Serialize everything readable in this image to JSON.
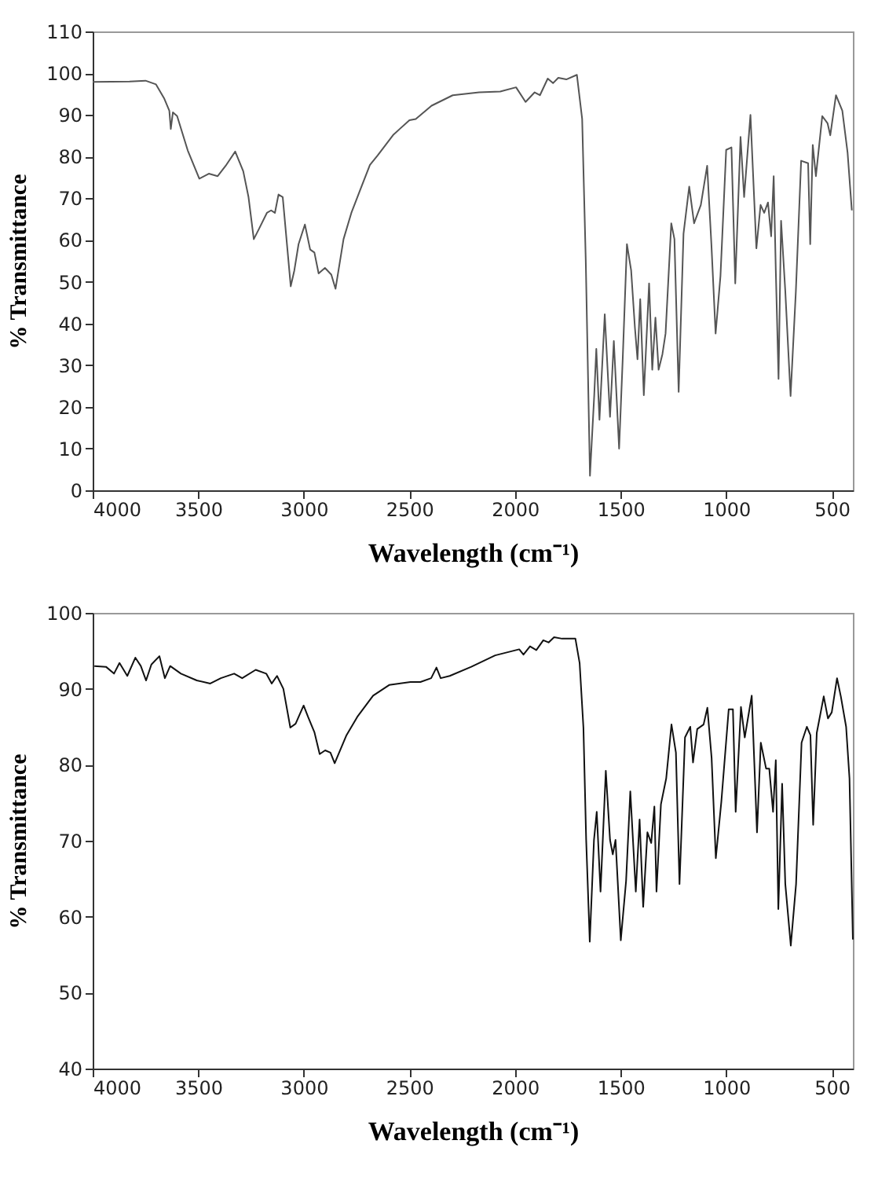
{
  "chart_data": [
    {
      "type": "line",
      "xlabel": "Wavelength (cm⁻¹)",
      "ylabel": "% Transmittance",
      "color": "#555555",
      "grid": false,
      "xlim": [
        4000,
        400
      ],
      "ylim": [
        0,
        110
      ],
      "xticks": [
        4000,
        3500,
        3000,
        2500,
        2000,
        1500,
        1000,
        500
      ],
      "yticks": [
        0,
        10,
        20,
        30,
        40,
        50,
        60,
        70,
        80,
        90,
        100,
        110
      ],
      "x": [
        4000,
        3825,
        3750,
        3700,
        3662,
        3637,
        3630,
        3620,
        3600,
        3550,
        3495,
        3450,
        3408,
        3370,
        3325,
        3287,
        3262,
        3237,
        3212,
        3175,
        3155,
        3137,
        3120,
        3100,
        3062,
        3045,
        3025,
        2995,
        2970,
        2950,
        2930,
        2900,
        2870,
        2850,
        2812,
        2775,
        2737,
        2687,
        2650,
        2575,
        2500,
        2470,
        2395,
        2295,
        2170,
        2070,
        1995,
        1950,
        1907,
        1882,
        1845,
        1820,
        1795,
        1757,
        1707,
        1682,
        1665,
        1645,
        1625,
        1615,
        1600,
        1575,
        1550,
        1532,
        1507,
        1490,
        1470,
        1450,
        1432,
        1420,
        1407,
        1390,
        1365,
        1350,
        1335,
        1320,
        1302,
        1287,
        1260,
        1245,
        1225,
        1202,
        1175,
        1152,
        1120,
        1090,
        1070,
        1050,
        1027,
        1000,
        975,
        957,
        932,
        915,
        885,
        857,
        837,
        820,
        802,
        787,
        775,
        765,
        752,
        740,
        720,
        695,
        670,
        645,
        612,
        602,
        590,
        575,
        545,
        520,
        507,
        480,
        450,
        425,
        405
      ],
      "values": [
        97.9,
        98,
        98.2,
        97.3,
        94,
        91,
        86.6,
        90.6,
        89.7,
        81.5,
        74.7,
        75.9,
        75.3,
        77.8,
        81.2,
        76.5,
        70.3,
        60.2,
        62.7,
        66.5,
        67.1,
        66.5,
        70.9,
        70.3,
        48.9,
        52.7,
        59,
        63.7,
        57.7,
        57,
        52,
        53.3,
        51.7,
        48.3,
        60.2,
        66.5,
        71.5,
        78,
        80.3,
        85.3,
        88.7,
        89,
        92.2,
        94.7,
        95.4,
        95.6,
        96.6,
        93.1,
        95.4,
        94.7,
        98.7,
        97.6,
        98.9,
        98.5,
        99.6,
        89,
        55.2,
        3.5,
        22.6,
        33.9,
        16.9,
        42.2,
        17.6,
        35.8,
        10,
        31.4,
        59,
        52.7,
        38.9,
        31.4,
        45.8,
        22.8,
        49.6,
        28.9,
        41.4,
        28.9,
        32.6,
        37.6,
        64,
        60.2,
        23.6,
        61.5,
        72.8,
        64,
        68.4,
        77.8,
        59,
        37.6,
        51.4,
        81.6,
        82.2,
        49.6,
        84.7,
        70.3,
        90,
        58,
        68.4,
        66.5,
        69,
        60.9,
        75.3,
        52.7,
        26.7,
        64.6,
        47.7,
        22.6,
        47.7,
        79,
        78.4,
        59,
        82.8,
        75.3,
        89.7,
        88,
        85.1,
        94.7,
        91,
        80.9,
        67.1
      ]
    },
    {
      "type": "line",
      "xlabel": "Wavelength (cm⁻¹)",
      "ylabel": "% Transmittance",
      "color": "#111111",
      "grid": false,
      "xlim": [
        4000,
        400
      ],
      "ylim": [
        40,
        100
      ],
      "xticks": [
        4000,
        3500,
        3000,
        2500,
        2000,
        1500,
        1000,
        500
      ],
      "yticks": [
        40,
        50,
        60,
        70,
        80,
        90,
        100
      ],
      "x": [
        3992,
        3937,
        3899,
        3873,
        3836,
        3798,
        3772,
        3747,
        3722,
        3684,
        3658,
        3633,
        3582,
        3507,
        3443,
        3393,
        3330,
        3292,
        3228,
        3178,
        3152,
        3127,
        3097,
        3064,
        3039,
        3001,
        2980,
        2950,
        2925,
        2899,
        2874,
        2854,
        2798,
        2747,
        2672,
        2596,
        2495,
        2448,
        2397,
        2372,
        2352,
        2309,
        2207,
        2094,
        1980,
        1960,
        1929,
        1899,
        1866,
        1841,
        1815,
        1777,
        1714,
        1694,
        1676,
        1663,
        1646,
        1626,
        1613,
        1595,
        1570,
        1550,
        1537,
        1524,
        1499,
        1474,
        1454,
        1428,
        1410,
        1393,
        1373,
        1355,
        1340,
        1330,
        1309,
        1284,
        1259,
        1238,
        1221,
        1195,
        1170,
        1157,
        1137,
        1107,
        1089,
        1069,
        1049,
        1023,
        988,
        968,
        955,
        930,
        912,
        879,
        854,
        836,
        811,
        796,
        778,
        765,
        753,
        735,
        720,
        694,
        669,
        643,
        618,
        601,
        588,
        571,
        538,
        518,
        500,
        475,
        457,
        432,
        416,
        400
      ],
      "values": [
        93,
        92.9,
        92,
        93.4,
        91.7,
        94.1,
        93,
        91.1,
        93.2,
        94.3,
        91.4,
        93,
        92,
        91.1,
        90.7,
        91.4,
        92,
        91.4,
        92.5,
        92,
        90.7,
        91.7,
        90,
        84.9,
        85.4,
        87.8,
        86.3,
        84.3,
        81.4,
        81.9,
        81.6,
        80.2,
        83.9,
        86.3,
        89.1,
        90.5,
        90.9,
        90.9,
        91.4,
        92.8,
        91.4,
        91.7,
        92.9,
        94.4,
        95.2,
        94.5,
        95.6,
        95.1,
        96.4,
        96.1,
        96.8,
        96.6,
        96.6,
        93.4,
        84.9,
        70.1,
        56.7,
        70.1,
        73.8,
        63.3,
        79.2,
        70.1,
        68.2,
        70.1,
        56.9,
        64.7,
        76.5,
        63.3,
        72.8,
        61.3,
        71.1,
        69.7,
        74.5,
        63.3,
        74.8,
        78.2,
        85.3,
        81.6,
        64.3,
        83.6,
        85,
        80.3,
        84.7,
        85.3,
        87.5,
        80.9,
        67.7,
        75.1,
        87.3,
        87.3,
        73.8,
        87.6,
        83.6,
        89.1,
        71.1,
        82.9,
        79.5,
        79.5,
        73.8,
        80.6,
        61,
        77.5,
        64.3,
        56.2,
        64.3,
        82.9,
        85,
        83.9,
        72.1,
        84.2,
        89,
        86.1,
        86.9,
        91.4,
        89,
        85,
        78.2,
        57
      ]
    }
  ]
}
